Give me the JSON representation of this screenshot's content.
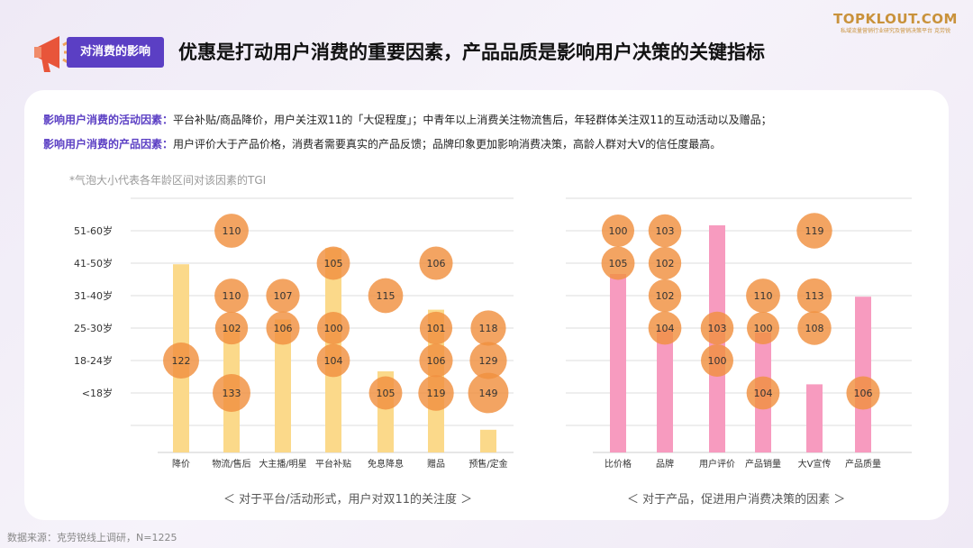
{
  "header": {
    "tag": "对消费的影响",
    "title": "优惠是打动用户消费的重要因素，产品品质是影响用户决策的关键指标"
  },
  "brand": {
    "name": "TOPKLOUT.COM",
    "subtitle": "私域流量营销行业研究及营销决策平台  克劳锐"
  },
  "factors": [
    {
      "label": "影响用户消费的活动因素：",
      "text": "平台补贴/商品降价，用户关注双11的「大促程度」；中青年以上消费关注物流售后，年轻群体关注双11的互动活动以及赠品；"
    },
    {
      "label": "影响用户消费的产品因素：",
      "text": "用户评价大于产品价格，消费者需要真实的产品反馈；品牌印象更加影响消费决策，高龄人群对大V的信任度最高。"
    }
  ],
  "note": "*气泡大小代表各年龄区间对该因素的TGI",
  "source": "数据来源：克劳锐线上调研，N=1225",
  "colors": {
    "bubble": "#f0903f",
    "bar_left": "#fbd98a",
    "bar_right": "#f79bbf",
    "accent": "#5b3fc4"
  },
  "chart_data": [
    {
      "type": "scatter",
      "caption": "＜ 对于平台/活动形式，用户对双11的关注度 ＞",
      "y_categories": [
        "<18岁",
        "18-24岁",
        "25-30岁",
        "31-40岁",
        "41-50岁",
        "51-60岁"
      ],
      "x_categories": [
        "降价",
        "物流/售后",
        "大主播/明星",
        "平台补贴",
        "免息降息",
        "赠品",
        "预售/定金"
      ],
      "bar_levels": [
        5.8,
        3.9,
        4.1,
        6.3,
        2.5,
        4.4,
        0.7
      ],
      "bubbles": [
        {
          "x": "降价",
          "y": "18-24岁",
          "value": 122
        },
        {
          "x": "物流/售后",
          "y": "51-60岁",
          "value": 110
        },
        {
          "x": "物流/售后",
          "y": "31-40岁",
          "value": 110
        },
        {
          "x": "物流/售后",
          "y": "25-30岁",
          "value": 102
        },
        {
          "x": "物流/售后",
          "y": "<18岁",
          "value": 133
        },
        {
          "x": "大主播/明星",
          "y": "31-40岁",
          "value": 107
        },
        {
          "x": "大主播/明星",
          "y": "25-30岁",
          "value": 106
        },
        {
          "x": "平台补贴",
          "y": "41-50岁",
          "value": 105
        },
        {
          "x": "平台补贴",
          "y": "25-30岁",
          "value": 100
        },
        {
          "x": "平台补贴",
          "y": "18-24岁",
          "value": 104
        },
        {
          "x": "免息降息",
          "y": "31-40岁",
          "value": 115
        },
        {
          "x": "免息降息",
          "y": "<18岁",
          "value": 105
        },
        {
          "x": "赠品",
          "y": "41-50岁",
          "value": 106
        },
        {
          "x": "赠品",
          "y": "25-30岁",
          "value": 101
        },
        {
          "x": "赠品",
          "y": "18-24岁",
          "value": 106
        },
        {
          "x": "赠品",
          "y": "<18岁",
          "value": 119
        },
        {
          "x": "预售/定金",
          "y": "25-30岁",
          "value": 118
        },
        {
          "x": "预售/定金",
          "y": "18-24岁",
          "value": 129
        },
        {
          "x": "预售/定金",
          "y": "<18岁",
          "value": 149
        }
      ]
    },
    {
      "type": "scatter",
      "caption": "＜ 对于产品，促进用户消费决策的因素 ＞",
      "y_categories": [
        "<18岁",
        "18-24岁",
        "25-30岁",
        "31-40岁",
        "41-50岁",
        "51-60岁"
      ],
      "x_categories": [
        "比价格",
        "品牌",
        "用户评价",
        "产品销量",
        "大V宣传",
        "产品质量"
      ],
      "bar_levels": [
        5.5,
        3.8,
        7.0,
        3.7,
        2.1,
        4.8
      ],
      "bubbles": [
        {
          "x": "比价格",
          "y": "51-60岁",
          "value": 100
        },
        {
          "x": "比价格",
          "y": "41-50岁",
          "value": 105
        },
        {
          "x": "品牌",
          "y": "51-60岁",
          "value": 103
        },
        {
          "x": "品牌",
          "y": "41-50岁",
          "value": 102
        },
        {
          "x": "品牌",
          "y": "31-40岁",
          "value": 102
        },
        {
          "x": "品牌",
          "y": "25-30岁",
          "value": 104
        },
        {
          "x": "用户评价",
          "y": "25-30岁",
          "value": 103
        },
        {
          "x": "用户评价",
          "y": "18-24岁",
          "value": 100
        },
        {
          "x": "产品销量",
          "y": "31-40岁",
          "value": 110
        },
        {
          "x": "产品销量",
          "y": "25-30岁",
          "value": 100
        },
        {
          "x": "产品销量",
          "y": "<18岁",
          "value": 104
        },
        {
          "x": "大V宣传",
          "y": "51-60岁",
          "value": 119
        },
        {
          "x": "大V宣传",
          "y": "31-40岁",
          "value": 113
        },
        {
          "x": "大V宣传",
          "y": "25-30岁",
          "value": 108
        },
        {
          "x": "产品质量",
          "y": "<18岁",
          "value": 106
        }
      ]
    }
  ]
}
